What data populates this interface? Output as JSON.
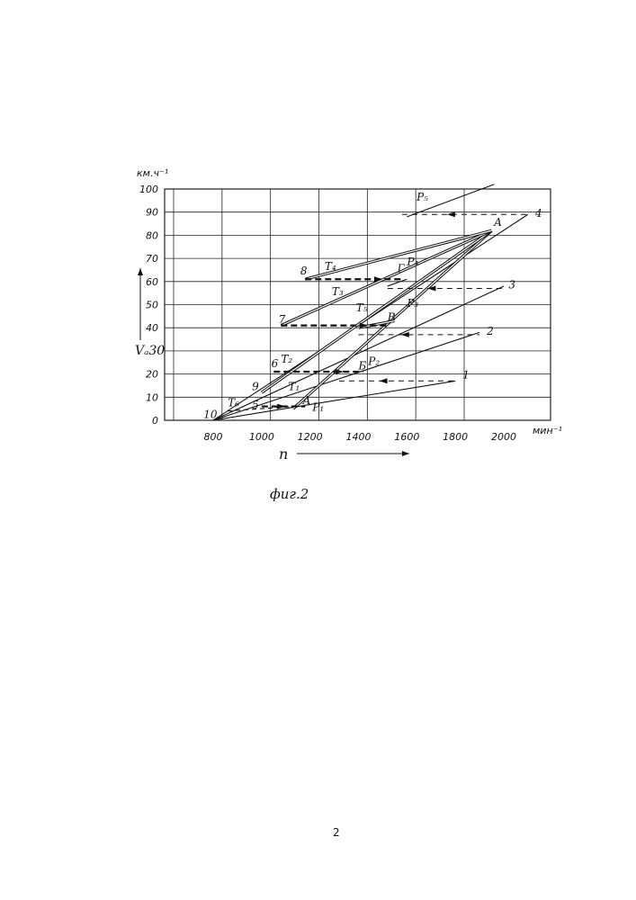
{
  "page": {
    "caption": "фиг.2",
    "page_number": "2"
  },
  "chart_data": {
    "type": "line",
    "title": "",
    "xlabel": "n",
    "ylabel": "Vₐ",
    "x_unit": "мин⁻¹",
    "y_unit": "км.ч⁻¹",
    "xlim": [
      600,
      2150
    ],
    "ylim": [
      0,
      100
    ],
    "x_ticks": [
      800,
      1000,
      1200,
      1400,
      1600,
      1800,
      2000
    ],
    "y_ticks": [
      0,
      10,
      20,
      30,
      40,
      50,
      60,
      70,
      80,
      90,
      100
    ],
    "y_tick_labels": [
      "0",
      "10",
      "20",
      "",
      "40",
      "50",
      "60",
      "70",
      "80",
      "90",
      "100"
    ],
    "y_label_text": "Vₐ30",
    "grid": true,
    "series": [
      {
        "name": "1",
        "style": "solid",
        "double": false,
        "points": [
          [
            800,
            0
          ],
          [
            1800,
            17
          ]
        ]
      },
      {
        "name": "2",
        "style": "solid",
        "double": false,
        "points": [
          [
            800,
            0
          ],
          [
            1900,
            38
          ]
        ]
      },
      {
        "name": "3",
        "style": "solid",
        "double": false,
        "points": [
          [
            800,
            0
          ],
          [
            2000,
            58
          ]
        ]
      },
      {
        "name": "4",
        "style": "solid",
        "double": false,
        "points": [
          [
            800,
            0
          ],
          [
            2100,
            89
          ]
        ]
      },
      {
        "name": "P₅",
        "style": "solid",
        "double": false,
        "points": [
          [
            1600,
            88
          ],
          [
            1960,
            102
          ]
        ]
      },
      {
        "name": "P₄",
        "style": "solid",
        "double": false,
        "points": [
          [
            1520,
            58
          ],
          [
            1600,
            61
          ]
        ]
      },
      {
        "name": "T₁",
        "style": "solid",
        "double": true,
        "points": [
          [
            1130,
            5
          ],
          [
            1950,
            82
          ]
        ]
      },
      {
        "name": "T₂",
        "style": "solid",
        "double": true,
        "points": [
          [
            1000,
            12
          ],
          [
            1950,
            82
          ]
        ]
      },
      {
        "name": "T₃",
        "style": "solid",
        "double": true,
        "points": [
          [
            1080,
            41
          ],
          [
            1950,
            82
          ]
        ]
      },
      {
        "name": "T₄",
        "style": "solid",
        "double": true,
        "points": [
          [
            1180,
            61
          ],
          [
            1950,
            82
          ]
        ]
      },
      {
        "name": "T₅",
        "style": "solid",
        "double": true,
        "points": [
          [
            1400,
            40
          ],
          [
            1550,
            43
          ]
        ]
      },
      {
        "name": "T₆",
        "style": "dashed",
        "double": false,
        "points": [
          [
            860,
            4
          ],
          [
            1130,
            6
          ]
        ]
      }
    ],
    "shift_arrows": [
      {
        "from": [
          1580,
          89
        ],
        "to": [
          2100,
          89
        ],
        "direction": "left",
        "bold": false
      },
      {
        "from": [
          1520,
          57
        ],
        "to": [
          2000,
          57
        ],
        "direction": "left",
        "bold": false
      },
      {
        "from": [
          1400,
          37
        ],
        "to": [
          1900,
          37
        ],
        "direction": "left",
        "bold": false
      },
      {
        "from": [
          1320,
          17
        ],
        "to": [
          1800,
          17
        ],
        "direction": "left",
        "bold": false
      },
      {
        "from": [
          1180,
          61
        ],
        "to": [
          1580,
          61
        ],
        "direction": "right",
        "bold": true
      },
      {
        "from": [
          1080,
          41
        ],
        "to": [
          1520,
          41
        ],
        "direction": "right",
        "bold": true
      },
      {
        "from": [
          1050,
          21
        ],
        "to": [
          1420,
          21
        ],
        "direction": "right",
        "bold": true
      },
      {
        "from": [
          1000,
          6
        ],
        "to": [
          1180,
          6
        ],
        "direction": "right",
        "bold": true
      }
    ],
    "annotations": [
      {
        "text": "1",
        "x": 1830,
        "y": 18
      },
      {
        "text": "2",
        "x": 1930,
        "y": 37
      },
      {
        "text": "3",
        "x": 2020,
        "y": 57
      },
      {
        "text": "4",
        "x": 2130,
        "y": 88
      },
      {
        "text": "5",
        "x": 960,
        "y": 5
      },
      {
        "text": "6",
        "x": 1040,
        "y": 23
      },
      {
        "text": "7",
        "x": 1070,
        "y": 42
      },
      {
        "text": "8",
        "x": 1160,
        "y": 63
      },
      {
        "text": "9",
        "x": 960,
        "y": 13
      },
      {
        "text": "10",
        "x": 760,
        "y": 1
      },
      {
        "text": "A",
        "x": 1960,
        "y": 84
      },
      {
        "text": "Г",
        "x": 1560,
        "y": 64
      },
      {
        "text": "Б",
        "x": 1400,
        "y": 22
      },
      {
        "text": "В",
        "x": 1520,
        "y": 43
      },
      {
        "text": "A",
        "x": 1170,
        "y": 7
      },
      {
        "text": "P₁",
        "x": 1210,
        "y": 4
      },
      {
        "text": "P₂",
        "x": 1440,
        "y": 24
      },
      {
        "text": "P₃",
        "x": 1600,
        "y": 49
      },
      {
        "text": "P₄",
        "x": 1600,
        "y": 67
      },
      {
        "text": "P₅",
        "x": 1640,
        "y": 95
      },
      {
        "text": "T₁",
        "x": 1110,
        "y": 13
      },
      {
        "text": "T₂",
        "x": 1080,
        "y": 25
      },
      {
        "text": "T₃",
        "x": 1290,
        "y": 54
      },
      {
        "text": "T₄",
        "x": 1260,
        "y": 65
      },
      {
        "text": "T₅",
        "x": 1390,
        "y": 47
      },
      {
        "text": "T₆",
        "x": 860,
        "y": 6
      }
    ]
  },
  "styles": {
    "line": "#111111",
    "grid": "#222222"
  }
}
